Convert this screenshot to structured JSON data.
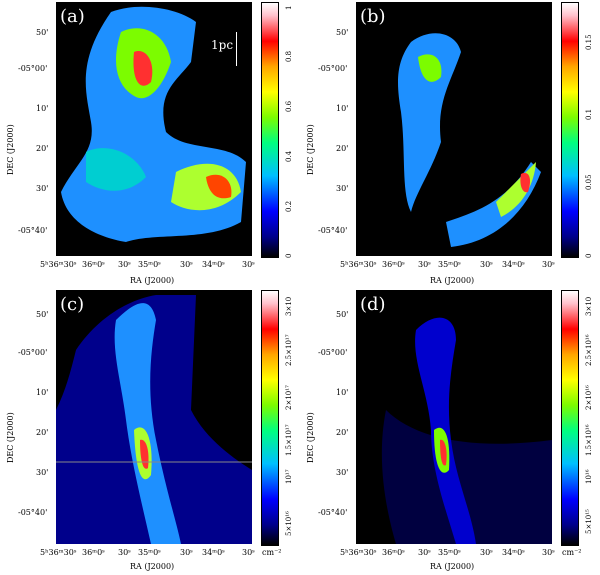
{
  "panels": [
    {
      "letter": "(a)",
      "cbar_ticks": [
        "1",
        "0.8",
        "0.6",
        "0.4",
        "0.2",
        "0"
      ]
    },
    {
      "letter": "(b)",
      "cbar_ticks": [
        "0.15",
        "0.1",
        "0.05",
        "0"
      ]
    },
    {
      "letter": "(c)",
      "cbar_ticks": [
        "3×10",
        "2.5×10¹⁷",
        "2×10¹⁷",
        "1.5×10¹⁷",
        "10¹⁷",
        "5×10¹⁶"
      ],
      "unit": "cm⁻²"
    },
    {
      "letter": "(d)",
      "cbar_ticks": [
        "3×10",
        "2.5×10¹⁶",
        "2×10¹⁶",
        "1.5×10¹⁶",
        "10¹⁶",
        "5×10¹⁵"
      ],
      "unit": "cm⁻²"
    }
  ],
  "axes": {
    "ra_title": "RA (J2000)",
    "dec_title": "DEC (J2000)",
    "ra_ticks": [
      "5ʰ36ᵐ30ˢ",
      "36ᵐ0ˢ",
      "30ˢ",
      "35ᵐ0ˢ",
      "30ˢ",
      "34ᵐ0ˢ",
      "30ˢ"
    ],
    "dec_ticks": [
      "50'",
      "-05°00'",
      "10'",
      "20'",
      "30'",
      "-05°40'"
    ]
  },
  "scalebar": {
    "label": "1pc"
  }
}
